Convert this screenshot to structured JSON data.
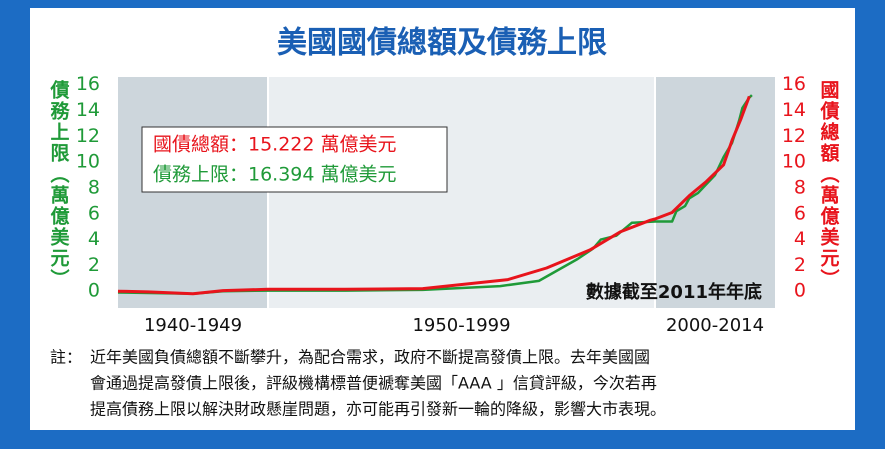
{
  "chart_data": {
    "type": "line",
    "title": "美國國債總額及債務上限",
    "left_axis_label": "債務上限（萬億美元）",
    "right_axis_label": "國債總額（萬億美元）",
    "annotation": "數據截至2011年年底",
    "periods": [
      {
        "label": "1940-1949",
        "xlim": [
          1940,
          1950
        ]
      },
      {
        "label": "1950-1999",
        "xlim": [
          1950,
          2000
        ]
      },
      {
        "label": "2000-2014",
        "xlim": [
          2000,
          2014
        ]
      }
    ],
    "ylim": [
      -1.3,
      16.6
    ],
    "yticks": [
      0,
      2,
      4,
      6,
      8,
      10,
      12,
      14,
      16
    ],
    "y2lim": [
      -1.3,
      16.6
    ],
    "y2ticks": [
      0,
      2,
      4,
      6,
      8,
      10,
      12,
      14,
      16
    ],
    "series": [
      {
        "name": "債務上限：16.394 萬億美元",
        "color": "#1f9a38",
        "axis": "y",
        "x": [
          1940,
          1945,
          1947,
          1950,
          1960,
          1970,
          1980,
          1985,
          1990,
          1992,
          1993,
          1995,
          1996,
          1997,
          2000,
          2002,
          2002.5,
          2003.5,
          2004,
          2005,
          2006,
          2007,
          2008,
          2009,
          2009.8,
          2010.2,
          2011,
          2011.3
        ],
        "values": [
          -0.1,
          -0.2,
          0,
          0.05,
          0.05,
          0.1,
          0.4,
          0.8,
          2.5,
          3.3,
          4.0,
          4.3,
          4.8,
          5.3,
          5.4,
          5.4,
          6.2,
          6.6,
          7.2,
          7.6,
          8.3,
          9.0,
          10.4,
          11.5,
          13.2,
          14.2,
          15.0,
          15.2
        ]
      },
      {
        "name": "國債總額：15.222 萬億美元",
        "color": "#e8141c",
        "axis": "y2",
        "x": [
          1940,
          1942,
          1945,
          1947,
          1950,
          1960,
          1970,
          1981,
          1986,
          1991.6,
          1995.5,
          1999.4,
          2000,
          2002,
          2004,
          2006,
          2008,
          2009,
          2010,
          2011
        ],
        "values": [
          0.0,
          -0.05,
          -0.2,
          0.05,
          0.15,
          0.15,
          0.2,
          0.9,
          1.8,
          3.2,
          4.6,
          5.5,
          5.6,
          6.1,
          7.4,
          8.5,
          9.8,
          11.7,
          13.3,
          15.1
        ]
      }
    ],
    "note_label": "註：",
    "note_lines": [
      "近年美國負債總額不斷攀升，為配合需求，政府不斷提高發債上限。去年美國國",
      "會通過提高發債上限後，評級機構標普便褫奪美國「AAA 」信貸評級，今次若再",
      "提高債務上限以解決財政懸崖問題，亦可能再引發新一輪的降級，影響大市表現。"
    ]
  }
}
